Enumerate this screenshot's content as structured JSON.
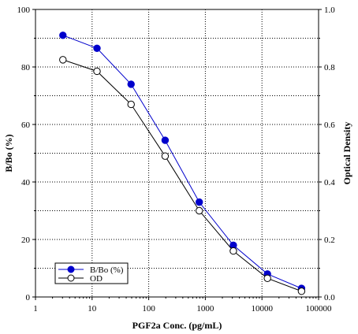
{
  "chart_data": {
    "type": "line",
    "title": "",
    "xlabel": "PGF2a Conc. (pg/mL)",
    "ylabel_left": "B/Bo (%)",
    "ylabel_right": "Optical Density",
    "x_scale": "log",
    "xlim": [
      1,
      100000
    ],
    "ylim_left": [
      0,
      100
    ],
    "ylim_right": [
      0,
      1.0
    ],
    "x_ticks": [
      1,
      10,
      100,
      1000,
      10000,
      100000
    ],
    "x_tick_labels": [
      "1",
      "10",
      "100",
      "1000",
      "10000",
      "100000"
    ],
    "y_left_ticks": [
      0,
      20,
      40,
      60,
      80,
      100
    ],
    "y_left_tick_labels": [
      "0",
      "20",
      "40",
      "60",
      "80",
      "100"
    ],
    "y_right_ticks": [
      0,
      0.2,
      0.4,
      0.6,
      0.8,
      1.0
    ],
    "y_right_tick_labels": [
      "0.0",
      "0.2",
      "0.4",
      "0.6",
      "0.8",
      "1.0"
    ],
    "grid": true,
    "legend_position": "bottom-left",
    "series": [
      {
        "name": "B/Bo (%)",
        "axis": "left",
        "color": "#0000cc",
        "marker": "filled-circle",
        "x": [
          3.05,
          12.2,
          48.8,
          195,
          781,
          3125,
          12500,
          50000
        ],
        "y": [
          91,
          86.5,
          74,
          54.5,
          33,
          18,
          8,
          3
        ]
      },
      {
        "name": "OD",
        "axis": "right",
        "color": "#000000",
        "marker": "open-circle",
        "x": [
          3.05,
          12.2,
          48.8,
          195,
          781,
          3125,
          12500,
          50000
        ],
        "y": [
          0.825,
          0.785,
          0.67,
          0.49,
          0.3,
          0.16,
          0.065,
          0.02
        ]
      }
    ]
  }
}
